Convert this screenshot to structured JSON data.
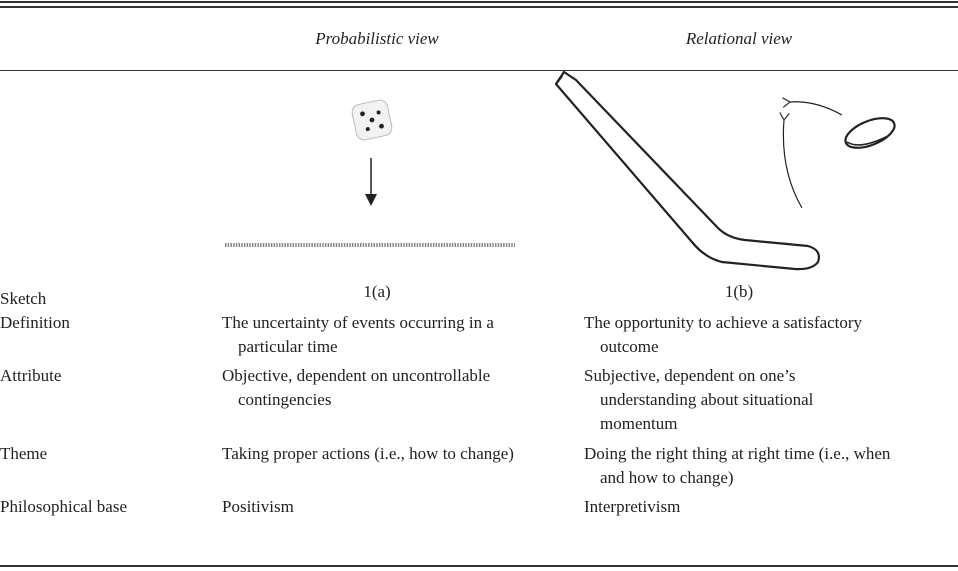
{
  "header": {
    "columns": [
      "Probabilistic view",
      "Relational view"
    ]
  },
  "table": {
    "rows": [
      [
        "Sketch",
        "1(a)",
        "1(b)"
      ],
      [
        "Definition",
        "The uncertainty of events occurring in a particular time",
        "The opportunity to achieve a satisfactory outcome"
      ],
      [
        "Attribute",
        "Objective, dependent on uncontrollable contingencies",
        "Subjective, dependent on one’s understanding about situational momentum"
      ],
      [
        "Theme",
        "Taking proper actions (i.e., how to change)",
        "Doing the right thing at right time (i.e., when and how to change)"
      ],
      [
        "Philosophical base",
        "Positivism",
        "Interpretivism"
      ]
    ]
  }
}
